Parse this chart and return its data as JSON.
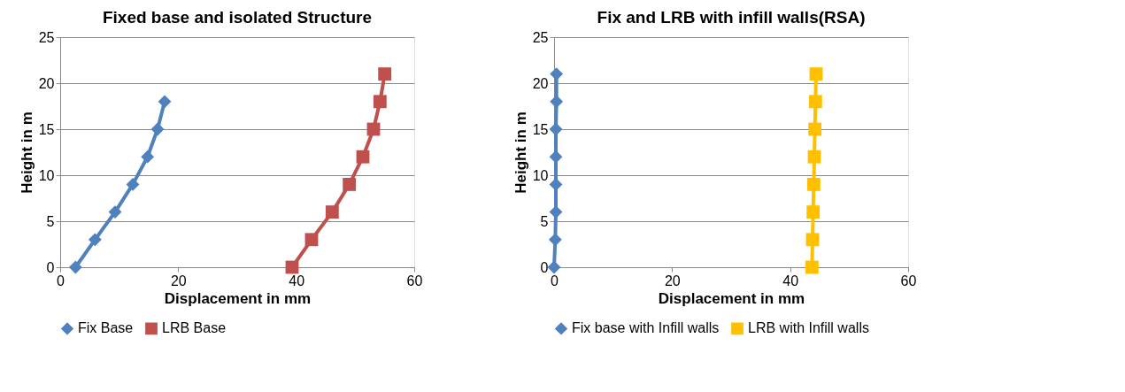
{
  "chart_data": [
    {
      "type": "line",
      "title": "Fixed base and isolated Structure",
      "xlabel": "Displacement in mm",
      "ylabel": "Height in m",
      "xlim": [
        0,
        60
      ],
      "xticks": [
        0,
        20,
        40,
        60
      ],
      "ylim": [
        0,
        25
      ],
      "yticks": [
        0,
        5,
        10,
        15,
        20,
        25
      ],
      "grid": "y",
      "legend": "bottom",
      "series": [
        {
          "name": "Fix Base",
          "color": "#4f81bd",
          "marker": "diamond",
          "x": [
            2.6,
            5.9,
            9.3,
            12.3,
            14.8,
            16.5,
            17.7
          ],
          "values": [
            0,
            3,
            6,
            9,
            12,
            15,
            18
          ]
        },
        {
          "name": "LRB Base",
          "color": "#c0504d",
          "marker": "square",
          "x": [
            39.3,
            42.6,
            46.1,
            49.0,
            51.3,
            53.1,
            54.2,
            55.0
          ],
          "values": [
            0,
            3,
            6,
            9,
            12,
            15,
            18,
            21
          ]
        }
      ]
    },
    {
      "type": "line",
      "title": "Fix and LRB with infill walls(RSA)",
      "xlabel": "Displacement in mm",
      "ylabel": "Height in m",
      "xlim": [
        0,
        60
      ],
      "xticks": [
        0,
        20,
        40,
        60
      ],
      "ylim": [
        0,
        25
      ],
      "yticks": [
        0,
        5,
        10,
        15,
        20,
        25
      ],
      "grid": "y",
      "legend": "bottom",
      "series": [
        {
          "name": "Fix base with Infill walls",
          "color": "#4f81bd",
          "marker": "diamond",
          "x": [
            0,
            0.2,
            0.3,
            0.3,
            0.3,
            0.3,
            0.4,
            0.4
          ],
          "values": [
            0,
            3,
            6,
            9,
            12,
            15,
            18,
            21
          ]
        },
        {
          "name": "LRB  with Infill walls",
          "color": "#ffc000",
          "marker": "square",
          "x": [
            43.7,
            43.8,
            43.9,
            44.0,
            44.1,
            44.2,
            44.3,
            44.4
          ],
          "values": [
            0,
            3,
            6,
            9,
            12,
            15,
            18,
            21
          ]
        }
      ]
    }
  ]
}
